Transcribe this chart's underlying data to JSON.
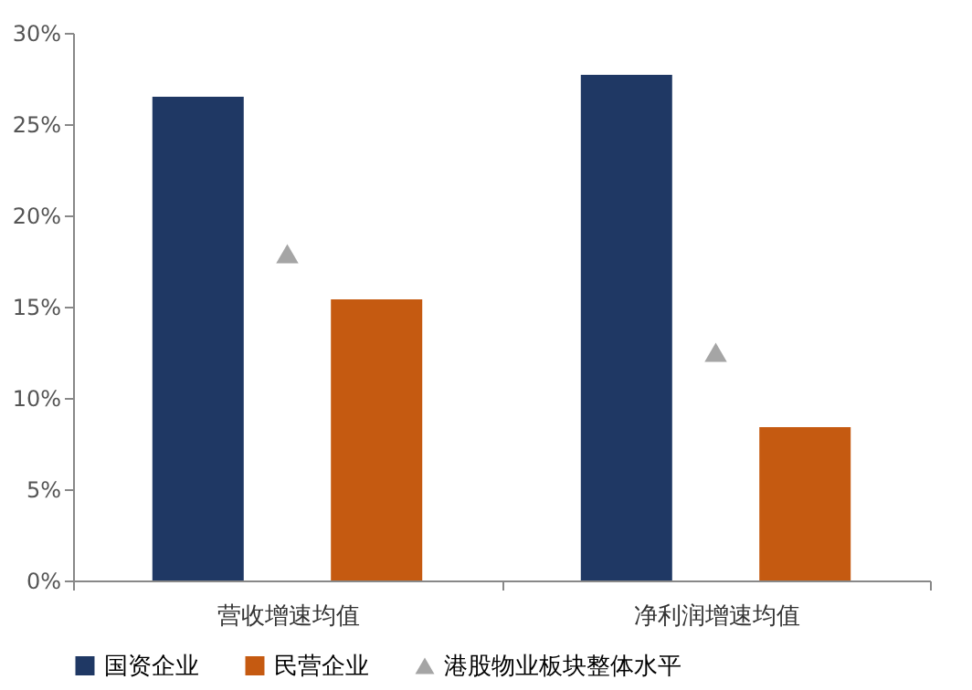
{
  "chart_data": {
    "type": "bar",
    "categories": [
      "营收增速均值",
      "净利润增速均值"
    ],
    "series": [
      {
        "name": "国资企业",
        "color": "#1f3864",
        "values": [
          26.5,
          27.7
        ]
      },
      {
        "name": "民营企业",
        "color": "#c55a11",
        "values": [
          15.4,
          8.4
        ]
      },
      {
        "name": "港股物业板块整体水平",
        "color": "#a5a5a5",
        "type": "scatter",
        "marker": "triangle",
        "x": [
          "营收增速均值",
          "净利润增速均值"
        ],
        "values": [
          17.9,
          12.5
        ]
      }
    ],
    "ylim": [
      0,
      30
    ],
    "yticks": [
      {
        "value": 0,
        "label": "0%"
      },
      {
        "value": 5,
        "label": "5%"
      },
      {
        "value": 10,
        "label": "10%"
      },
      {
        "value": 15,
        "label": "15%"
      },
      {
        "value": 20,
        "label": "20%"
      },
      {
        "value": 25,
        "label": "25%"
      },
      {
        "value": 30,
        "label": "30%"
      }
    ],
    "grid": false,
    "legend": "bottom"
  }
}
